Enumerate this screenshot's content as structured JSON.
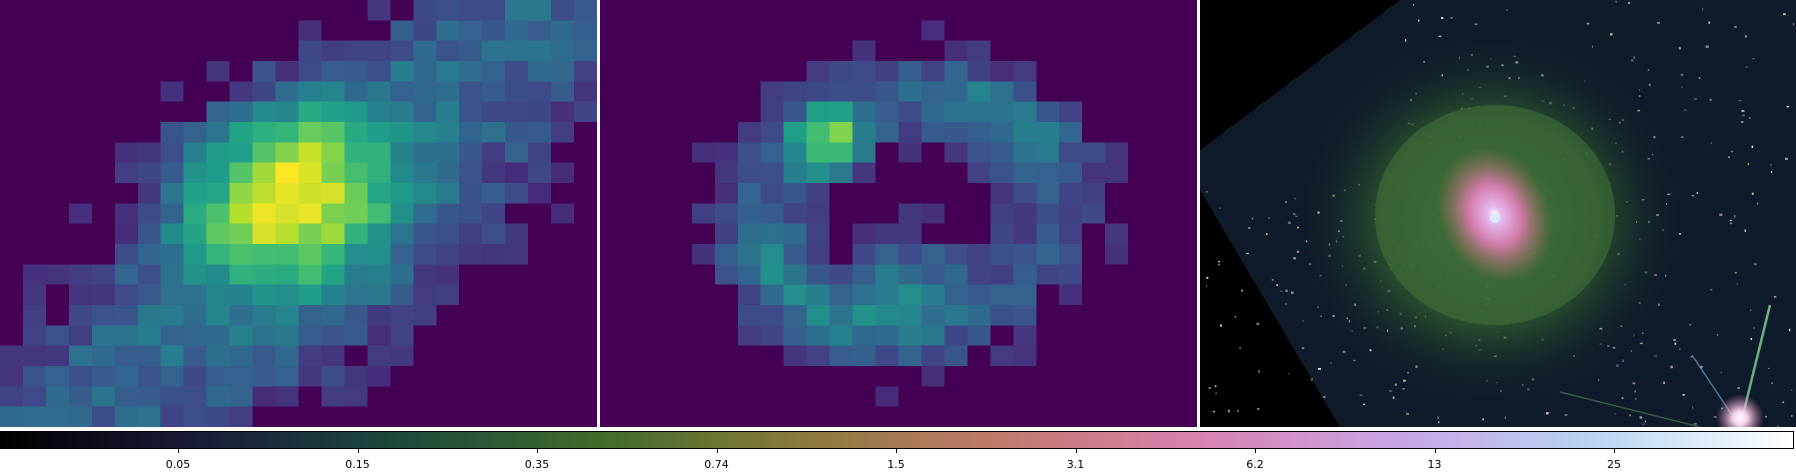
{
  "panels": [
    {
      "id": "panel-1",
      "kind": "pixel-map",
      "colormap": "viridis",
      "description_name": "intensity-map-single-peak"
    },
    {
      "id": "panel-2",
      "kind": "pixel-map",
      "colormap": "viridis",
      "description_name": "intensity-map-ring"
    },
    {
      "id": "panel-3",
      "kind": "galaxy-image",
      "colormap": "cubehelix"
    }
  ],
  "colorbar": {
    "colormap": "cubehelix",
    "scale": "log",
    "tick_labels": [
      "0.05",
      "0.15",
      "0.35",
      "0.74",
      "1.5",
      "3.1",
      "6.2",
      "13",
      "25"
    ],
    "colors": [
      "#000000",
      "#1b1c3a",
      "#1c4a3d",
      "#3f6b2a",
      "#8a7a3b",
      "#c07a6a",
      "#d782b0",
      "#c9a4e6",
      "#b9d4f2",
      "#ffffff"
    ]
  }
}
